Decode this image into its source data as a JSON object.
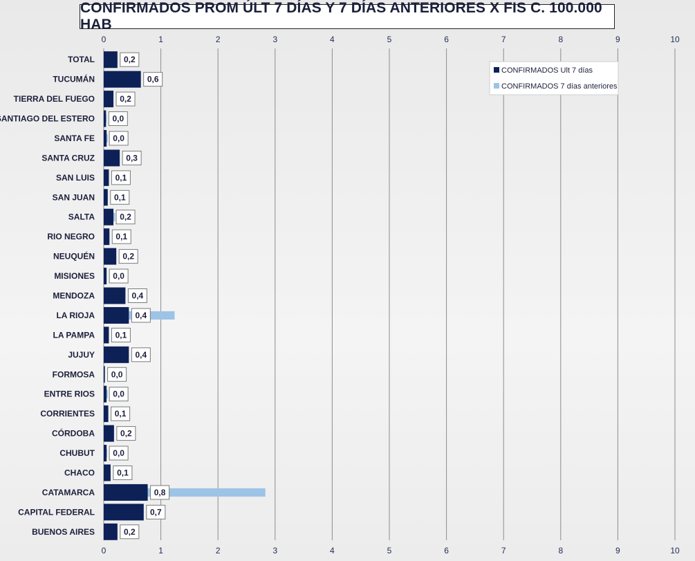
{
  "chart_data": {
    "type": "bar",
    "orientation": "horizontal",
    "title": "CONFIRMADOS PROM ÚLT 7 DÍAS Y 7 DÍAS ANTERIORES X FIS C. 100.000 HAB",
    "xlabel": "",
    "ylabel": "",
    "xlim": [
      0,
      10
    ],
    "xticks": [
      0,
      1,
      2,
      3,
      4,
      5,
      6,
      7,
      8,
      9,
      10
    ],
    "grid": true,
    "legend_position": "top-right",
    "categories": [
      "TOTAL",
      "TUCUMÁN",
      "TIERRA  DEL FUEGO",
      "SANTIAGO  DEL ESTERO",
      "SANTA FE",
      "SANTA CRUZ",
      "SAN LUIS",
      "SAN JUAN",
      "SALTA",
      "RIO NEGRO",
      "NEUQUÉN",
      "MISIONES",
      "MENDOZA",
      "LA RIOJA",
      "LA PAMPA",
      "JUJUY",
      "FORMOSA",
      "ENTRE RIOS",
      "CORRIENTES",
      "CÓRDOBA",
      "CHUBUT",
      "CHACO",
      "CATAMARCA",
      "CAPITAL FEDERAL",
      "BUENOS  AIRES"
    ],
    "series": [
      {
        "name": "CONFIRMADOS Ult 7 días",
        "color": "#0d2157",
        "values": [
          0.24,
          0.65,
          0.17,
          0.04,
          0.05,
          0.28,
          0.09,
          0.07,
          0.17,
          0.1,
          0.22,
          0.05,
          0.38,
          0.44,
          0.09,
          0.44,
          0.02,
          0.05,
          0.08,
          0.18,
          0.05,
          0.12,
          0.77,
          0.7,
          0.24
        ],
        "labels": [
          "0,2",
          "0,6",
          "0,2",
          "0,0",
          "0,0",
          "0,3",
          "0,1",
          "0,1",
          "0,2",
          "0,1",
          "0,2",
          "0,0",
          "0,4",
          "0,4",
          "0,1",
          "0,4",
          "0,0",
          "0,0",
          "0,1",
          "0,2",
          "0,0",
          "0,1",
          "0,8",
          "0,7",
          "0,2"
        ]
      },
      {
        "name": "CONFIRMADOS 7 días anteriores",
        "color": "#9dc3e6",
        "values": [
          0.24,
          0.54,
          0.17,
          0.05,
          0.07,
          0.25,
          0.09,
          0.07,
          0.2,
          0.1,
          0.05,
          0.05,
          0.35,
          1.24,
          0.07,
          0.43,
          0.0,
          0.07,
          0.08,
          0.17,
          0.06,
          0.06,
          2.83,
          0.68,
          0.24
        ]
      }
    ]
  }
}
